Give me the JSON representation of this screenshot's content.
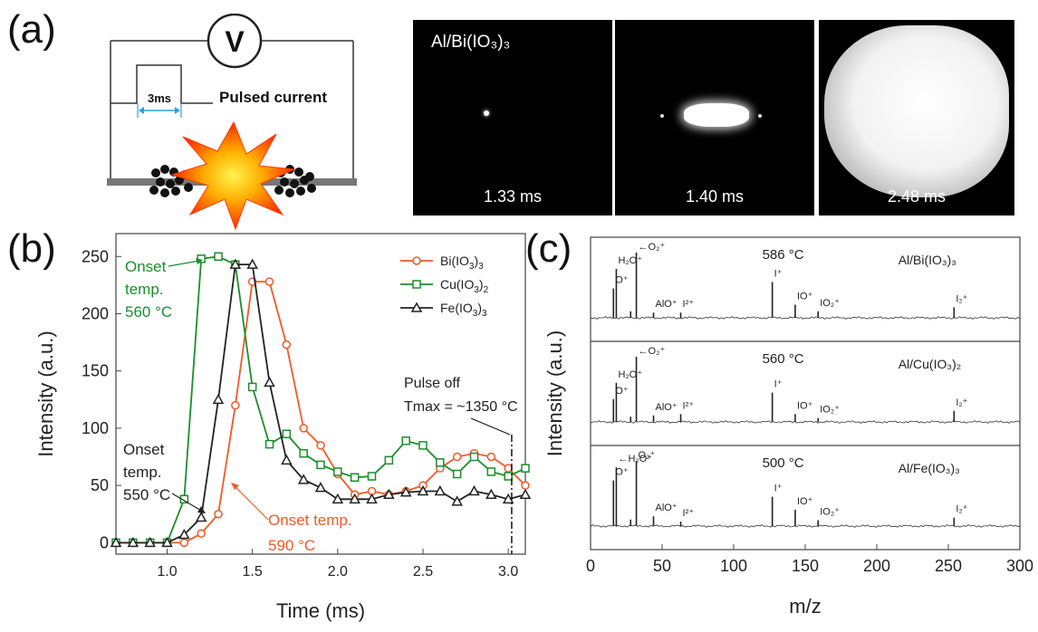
{
  "panel_labels": {
    "a": "(a)",
    "b": "(b)",
    "c": "(c)"
  },
  "schematic": {
    "meter_symbol": "V",
    "pulse_width": "3ms",
    "pulse_label": "Pulsed current"
  },
  "frames": {
    "material": "Al/Bi(IO₃)₃",
    "times": [
      "1.33 ms",
      "1.40 ms",
      "2.48 ms"
    ]
  },
  "chart_data": [
    {
      "type": "line",
      "xlabel": "Time (ms)",
      "ylabel": "Intensity (a.u.)",
      "xlim": [
        0.7,
        3.1
      ],
      "ylim": [
        -10,
        270
      ],
      "xticks": [
        1.0,
        1.5,
        2.0,
        2.5,
        3.0
      ],
      "xtick_labels": [
        "1.0",
        "1.5",
        "2.0",
        "2.5",
        "3.0"
      ],
      "yticks": [
        0,
        50,
        100,
        150,
        200,
        250
      ],
      "ytick_labels": [
        "0",
        "50",
        "100",
        "150",
        "200",
        "250"
      ],
      "legend_position": "top-right",
      "x": [
        0.7,
        0.8,
        0.9,
        1.0,
        1.1,
        1.2,
        1.3,
        1.4,
        1.5,
        1.6,
        1.7,
        1.8,
        1.9,
        2.0,
        2.1,
        2.2,
        2.3,
        2.4,
        2.5,
        2.6,
        2.7,
        2.8,
        2.9,
        3.0,
        3.1
      ],
      "series": [
        {
          "name": "Bi(IO3)3",
          "color": "#f05a28",
          "marker": "circle",
          "values": [
            0,
            0,
            0,
            0,
            0,
            8,
            25,
            120,
            228,
            228,
            173,
            100,
            85,
            60,
            42,
            45,
            42,
            45,
            50,
            65,
            75,
            78,
            75,
            65,
            50
          ]
        },
        {
          "name": "Cu(IO3)2",
          "color": "#1a8f2a",
          "marker": "square",
          "values": [
            0,
            0,
            0,
            0,
            38,
            248,
            250,
            243,
            136,
            86,
            95,
            78,
            68,
            62,
            57,
            58,
            72,
            89,
            85,
            70,
            60,
            75,
            62,
            58,
            65
          ]
        },
        {
          "name": "Fe(IO3)3",
          "color": "#222222",
          "marker": "triangle",
          "values": [
            0,
            0,
            0,
            0,
            7,
            22,
            125,
            243,
            243,
            140,
            72,
            55,
            48,
            38,
            38,
            38,
            42,
            44,
            45,
            45,
            36,
            45,
            42,
            38,
            42
          ]
        }
      ],
      "annotations": {
        "green_onset": [
          "Onset",
          "temp.",
          "560 °C"
        ],
        "black_onset": [
          "Onset",
          "temp.",
          "550 °C"
        ],
        "orange_onset": [
          "Onset temp.",
          "590 °C"
        ],
        "pulse_off": [
          "Pulse off",
          "Tmax = ~1350 °C"
        ],
        "pulse_off_x": 3.02
      },
      "colors": {
        "green": "#1a8f2a",
        "orange": "#f05a28",
        "black": "#222222"
      }
    },
    {
      "type": "line",
      "xlabel": "m/z",
      "ylabel": "Intensity (a.u.)",
      "xlim": [
        0,
        300
      ],
      "xticks": [
        0,
        50,
        100,
        150,
        200,
        250,
        300
      ],
      "xtick_labels": [
        "0",
        "50",
        "100",
        "150",
        "200",
        "250",
        "300"
      ],
      "panels": [
        {
          "temp": "586 °C",
          "sample": "Al/Bi(IO₃)₃",
          "peaks": [
            [
              16,
              0.45
            ],
            [
              18,
              0.75
            ],
            [
              28,
              0.1
            ],
            [
              32,
              1.0
            ],
            [
              44,
              0.08
            ],
            [
              63,
              0.08
            ],
            [
              127,
              0.55
            ],
            [
              143,
              0.2
            ],
            [
              159,
              0.1
            ],
            [
              254,
              0.16
            ]
          ],
          "labels": [
            {
              "t": "H₂O⁺",
              "x": 18
            },
            {
              "t": "←O₂⁺",
              "x": 32
            },
            {
              "t": "O⁺",
              "x": 16
            },
            {
              "t": "AlO⁺",
              "x": 44
            },
            {
              "t": "I²⁺",
              "x": 63
            },
            {
              "t": "I⁺",
              "x": 127
            },
            {
              "t": "IO⁺",
              "x": 143
            },
            {
              "t": "IO₂⁺",
              "x": 159
            },
            {
              "t": "I₂⁺",
              "x": 254
            }
          ]
        },
        {
          "temp": "560 °C",
          "sample": "Al/Cu(IO₃)₂",
          "peaks": [
            [
              16,
              0.35
            ],
            [
              18,
              0.6
            ],
            [
              28,
              0.08
            ],
            [
              32,
              1.0
            ],
            [
              44,
              0.1
            ],
            [
              63,
              0.12
            ],
            [
              127,
              0.45
            ],
            [
              143,
              0.12
            ],
            [
              159,
              0.06
            ],
            [
              254,
              0.17
            ]
          ],
          "labels": [
            {
              "t": "H₂O⁺",
              "x": 18
            },
            {
              "t": "←O₂⁺",
              "x": 32
            },
            {
              "t": "O⁺",
              "x": 16
            },
            {
              "t": "AlO⁺",
              "x": 44
            },
            {
              "t": "I²⁺",
              "x": 63
            },
            {
              "t": "I⁺",
              "x": 127
            },
            {
              "t": "IO⁺",
              "x": 143
            },
            {
              "t": "IO₂⁺",
              "x": 159
            },
            {
              "t": "I₂⁺",
              "x": 254
            }
          ]
        },
        {
          "temp": "500 °C",
          "sample": "Al/Fe(IO₃)₃",
          "peaks": [
            [
              16,
              0.7
            ],
            [
              18,
              0.9
            ],
            [
              28,
              0.1
            ],
            [
              32,
              1.0
            ],
            [
              44,
              0.15
            ],
            [
              63,
              0.07
            ],
            [
              127,
              0.45
            ],
            [
              143,
              0.25
            ],
            [
              159,
              0.09
            ],
            [
              254,
              0.13
            ]
          ],
          "labels": [
            {
              "t": "←H₂O⁺",
              "x": 18
            },
            {
              "t": "O₂⁺",
              "x": 32
            },
            {
              "t": "O⁺",
              "x": 16
            },
            {
              "t": "AlO⁺",
              "x": 44
            },
            {
              "t": "I²⁺",
              "x": 63
            },
            {
              "t": "I⁺",
              "x": 127
            },
            {
              "t": "IO⁺",
              "x": 143
            },
            {
              "t": "IO₂⁺",
              "x": 159
            },
            {
              "t": "I₂⁺",
              "x": 254
            }
          ]
        }
      ]
    }
  ]
}
